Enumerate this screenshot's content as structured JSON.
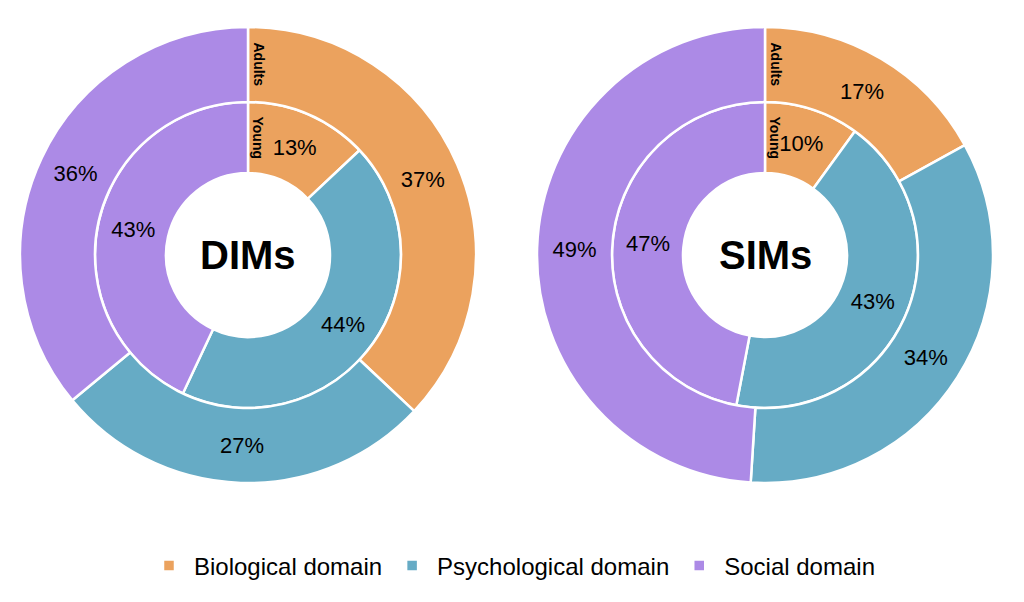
{
  "chart_data": [
    {
      "type": "pie",
      "title": "DIMs",
      "categories": [
        "Biological domain",
        "Psychological domain",
        "Social domain"
      ],
      "colors": [
        "#eba25e",
        "#66abc5",
        "#ac8ae6"
      ],
      "series": [
        {
          "name": "Young",
          "values": [
            13,
            44,
            43
          ],
          "value_labels": [
            "13%",
            "44%",
            "43%"
          ]
        },
        {
          "name": "Adults",
          "values": [
            37,
            27,
            36
          ],
          "value_labels": [
            "37%",
            "27%",
            "36%"
          ]
        }
      ],
      "data_labels": true,
      "legend": "bottom"
    },
    {
      "type": "pie",
      "title": "SIMs",
      "categories": [
        "Biological domain",
        "Psychological domain",
        "Social domain"
      ],
      "colors": [
        "#eba25e",
        "#66abc5",
        "#ac8ae6"
      ],
      "series": [
        {
          "name": "Young",
          "values": [
            10,
            43,
            47
          ],
          "value_labels": [
            "10%",
            "43%",
            "47%"
          ]
        },
        {
          "name": "Adults",
          "values": [
            17,
            34,
            49
          ],
          "value_labels": [
            "17%",
            "34%",
            "49%"
          ]
        }
      ],
      "data_labels": true,
      "legend": "bottom"
    }
  ]
}
